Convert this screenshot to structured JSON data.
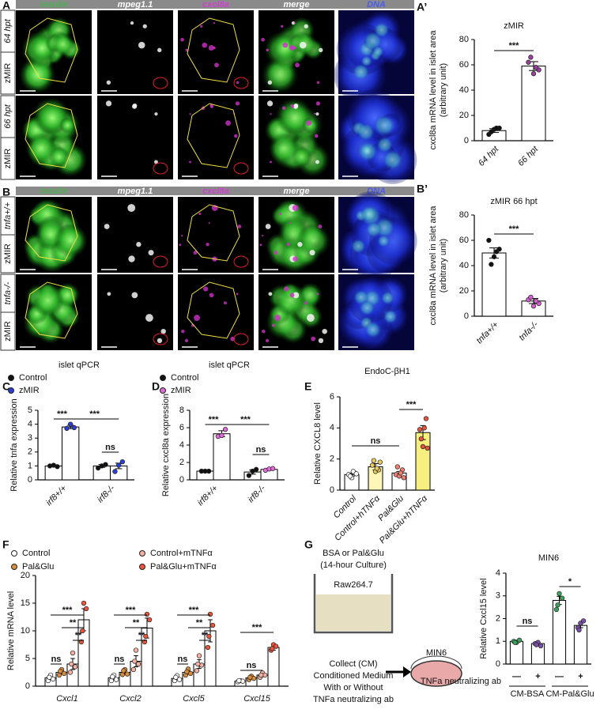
{
  "image_panels": [
    {
      "panel": "A",
      "channels": [
        "insulin",
        "mpeg1.1",
        "cxcl8a",
        "merge",
        "DNA"
      ],
      "rows": [
        {
          "group": "zMIR",
          "condition": "64 hpt"
        },
        {
          "group": "zMIR",
          "condition": "66 hpt"
        }
      ]
    },
    {
      "panel": "B",
      "channels": [
        "insulin",
        "mpeg1.1",
        "cxcl8a",
        "merge",
        "DNA"
      ],
      "rows": [
        {
          "group": "zMIR",
          "condition": "tnfa+/+"
        },
        {
          "group": "zMIR",
          "condition": "tnfa-/-"
        }
      ]
    }
  ],
  "schematic": {
    "treatment": "BSA or Pal&Glu",
    "culture": "(14-hour Culture)",
    "source_cells": "Raw264.7",
    "target_cells": "MIN6",
    "steps": [
      "Collect (CM)",
      "Conditioned Medium",
      "With or Without",
      "TNFa neutralizing ab"
    ]
  },
  "chart_data": [
    {
      "panel": "A’",
      "type": "bar",
      "title": "zMIR",
      "ylabel": [
        "cxcl8a mRNA level in islet area",
        "(arbitrary unit)"
      ],
      "categories": [
        "64 hpt",
        "66 hpt"
      ],
      "values": [
        8,
        59
      ],
      "errors": [
        1.5,
        3.5
      ],
      "points": [
        [
          5,
          9,
          10,
          7,
          10
        ],
        [
          62,
          53,
          56,
          66,
          58
        ]
      ],
      "point_colors": [
        "#111111",
        "#9b3fa0"
      ],
      "ylim": [
        0,
        80
      ],
      "yticks": [
        0,
        20,
        40,
        60,
        80
      ],
      "significance": [
        "***"
      ]
    },
    {
      "panel": "B’",
      "type": "bar",
      "title": "zMIR 66 hpt",
      "ylabel": [
        "cxcl8a mRNA level in islet area",
        "(arbitrary unit)"
      ],
      "categories": [
        "tnfa+/+",
        "tnfa-/-"
      ],
      "values": [
        50,
        12
      ],
      "errors": [
        4,
        2
      ],
      "points": [
        [
          60,
          47,
          53,
          41,
          51
        ],
        [
          13,
          8,
          10,
          15,
          12
        ]
      ],
      "point_colors": [
        "#111111",
        "#d45fcf"
      ],
      "ylim": [
        0,
        80
      ],
      "yticks": [
        0,
        20,
        40,
        60,
        80
      ],
      "significance": [
        "***"
      ]
    },
    {
      "panel": "C",
      "type": "bar",
      "title": "islet qPCR",
      "ylabel": "Relative tnfa expression",
      "categories": [
        "irf8+/+",
        "irf8-/-"
      ],
      "series": [
        {
          "name": "Control",
          "color": "#111111",
          "values": [
            1.0,
            1.0
          ],
          "errors": [
            0.05,
            0.1
          ],
          "points": [
            [
              1.0,
              1.05,
              0.95
            ],
            [
              0.85,
              1.0,
              1.1
            ]
          ]
        },
        {
          "name": "zMIR",
          "color": "#2b3fd6",
          "values": [
            3.8,
            1.0
          ],
          "errors": [
            0.12,
            0.2
          ],
          "points": [
            [
              3.7,
              4.0,
              3.75
            ],
            [
              0.6,
              1.05,
              1.3
            ]
          ]
        }
      ],
      "ylim": [
        0,
        5
      ],
      "yticks": [
        0,
        1,
        2,
        3,
        4,
        5
      ],
      "significance": [
        "***",
        "***",
        "ns"
      ]
    },
    {
      "panel": "D",
      "type": "bar",
      "title": "islet qPCR",
      "ylabel": "Relative cxcl8a expression",
      "categories": [
        "irf8+/+",
        "irf8-/-"
      ],
      "series": [
        {
          "name": "Control",
          "color": "#111111",
          "values": [
            1.0,
            0.9
          ],
          "errors": [
            0.05,
            0.25
          ],
          "points": [
            [
              1.0,
              1.0,
              1.0
            ],
            [
              0.5,
              1.0,
              1.2
            ]
          ]
        },
        {
          "name": "zMIR",
          "color": "#e06ad6",
          "values": [
            5.3,
            1.2
          ],
          "errors": [
            0.35,
            0.1
          ],
          "points": [
            [
              5.0,
              5.1,
              5.8
            ],
            [
              1.1,
              1.25,
              1.3
            ]
          ]
        }
      ],
      "ylim": [
        0,
        8
      ],
      "yticks": [
        0,
        2,
        4,
        6,
        8
      ],
      "significance": [
        "***",
        "***",
        "ns"
      ]
    },
    {
      "panel": "E",
      "type": "bar",
      "title": "EndoC-βH1",
      "ylabel": "Relative CXCL8 level",
      "categories": [
        "Control",
        "Control+hTNFα",
        "Pal&Glu",
        "Pal&Glu+hTNFα"
      ],
      "values": [
        1.0,
        1.5,
        1.1,
        3.7
      ],
      "errors": [
        0.1,
        0.2,
        0.1,
        0.45
      ],
      "points": [
        [
          1.0,
          0.8,
          1.1,
          0.9,
          1.2,
          1.05
        ],
        [
          1.6,
          1.2,
          1.3,
          1.9,
          1.4,
          1.8
        ],
        [
          1.0,
          0.9,
          1.3,
          1.5,
          1.1,
          0.8
        ],
        [
          3.9,
          2.8,
          4.6,
          3.3,
          4.0,
          2.7
        ]
      ],
      "bar_colors": [
        "#ffffff",
        "#fdf6b8",
        "#ffffff",
        "#f7ef80"
      ],
      "point_colors": [
        "#ffffff",
        "#e8c95a",
        "#f08070",
        "#e8553a"
      ],
      "ylim": [
        0,
        6
      ],
      "yticks": [
        0,
        2,
        4,
        6
      ],
      "significance": [
        "ns",
        "***"
      ]
    },
    {
      "panel": "F",
      "type": "bar",
      "ylabel": "Relative mRNA level",
      "categories": [
        "Cxcl1",
        "Cxcl2",
        "Cxcl5",
        "Cxcl15"
      ],
      "series": [
        {
          "name": "Control",
          "color": "#ffffff",
          "values": [
            1.5,
            1.5,
            1.4,
            0.9
          ],
          "errors": [
            0.3,
            0.3,
            0.3,
            0.1
          ],
          "points": [
            [
              1.0,
              2.0,
              1.3,
              1.6
            ],
            [
              1.0,
              2.0,
              1.2,
              1.7
            ],
            [
              1.0,
              1.9,
              1.2,
              1.6
            ],
            [
              0.8,
              1.0,
              0.9,
              1.0
            ]
          ]
        },
        {
          "name": "Pal&Glu",
          "color": "#d98c3a",
          "values": [
            2.5,
            2.5,
            2.5,
            1.5
          ],
          "errors": [
            0.3,
            0.3,
            0.3,
            0.2
          ],
          "points": [
            [
              2.0,
              3.0,
              2.3,
              2.7
            ],
            [
              2.1,
              3.0,
              2.2,
              2.8
            ],
            [
              2.0,
              3.1,
              2.3,
              2.6
            ],
            [
              1.2,
              1.8,
              1.4,
              1.6
            ]
          ]
        },
        {
          "name": "Control+mTNFα",
          "color": "#f4b0a0",
          "values": [
            4.0,
            4.5,
            4.0,
            2.0
          ],
          "errors": [
            1.0,
            1.0,
            0.8,
            0.3
          ],
          "points": [
            [
              2.5,
              6.0,
              3.5,
              4.0
            ],
            [
              3.0,
              6.5,
              4.0,
              4.5
            ],
            [
              2.8,
              5.5,
              3.8,
              4.0
            ],
            [
              1.6,
              2.4,
              2.0,
              2.0
            ]
          ]
        },
        {
          "name": "Pal&Glu+mTNFα",
          "color": "#e8553a",
          "values": [
            12,
            10.5,
            10,
            7
          ],
          "errors": [
            2.0,
            1.8,
            2.0,
            0.5
          ],
          "points": [
            [
              8,
              15,
              14,
              10
            ],
            [
              8,
              13,
              12,
              9
            ],
            [
              7,
              13,
              11,
              9
            ],
            [
              6.5,
              7.5,
              7.2,
              6.8
            ]
          ]
        }
      ],
      "ylim": [
        0,
        20
      ],
      "yticks": [
        0,
        5,
        10,
        15,
        20
      ],
      "significance": [
        "ns",
        "***",
        "**",
        "**",
        "ns",
        "***",
        "**",
        "**",
        "ns",
        "***",
        "**",
        "**",
        "ns",
        "***"
      ]
    },
    {
      "panel": "G",
      "type": "bar",
      "title": "MIN6",
      "ylabel": "Relative Cxcl15 level",
      "categories": [
        "—",
        "+",
        "—",
        "+"
      ],
      "groups": [
        "CM-BSA",
        "CM-Pal&Glu"
      ],
      "row_label": "TNFa neutralizing ab",
      "values": [
        1.0,
        0.9,
        2.8,
        1.7
      ],
      "errors": [
        0.05,
        0.05,
        0.18,
        0.1
      ],
      "points": [
        [
          1.0,
          0.95,
          1.05,
          0.95
        ],
        [
          0.9,
          0.95,
          0.8,
          0.85
        ],
        [
          2.4,
          3.1,
          2.9,
          2.6
        ],
        [
          1.6,
          1.8,
          1.9,
          1.5
        ]
      ],
      "point_colors": [
        "#3da35d",
        "#7b4fa8",
        "#3da35d",
        "#7b4fa8"
      ],
      "ylim": [
        0,
        4
      ],
      "yticks": [
        0,
        1,
        2,
        3,
        4
      ],
      "significance": [
        "ns",
        "*"
      ]
    }
  ]
}
